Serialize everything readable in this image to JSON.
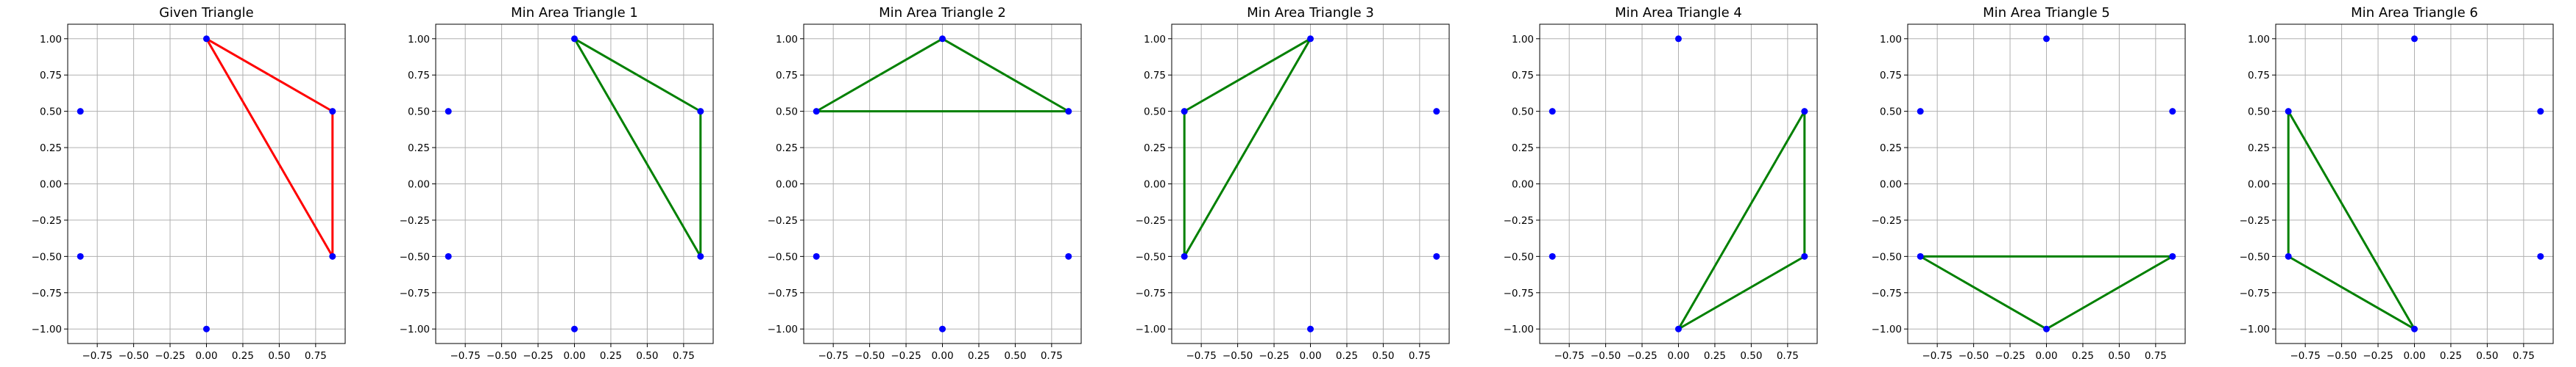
{
  "chart_data": [
    {
      "type": "scatter",
      "title": "Given Triangle",
      "points": {
        "x": [
          0,
          0.866,
          0.866,
          0,
          -0.866,
          -0.866
        ],
        "y": [
          1,
          0.5,
          -0.5,
          -1,
          -0.5,
          0.5
        ]
      },
      "triangle": [
        [
          0,
          1
        ],
        [
          0.866,
          0.5
        ],
        [
          0.866,
          -0.5
        ]
      ],
      "triangle_color": "#ff0000",
      "point_color": "#0000ff",
      "xticks": [
        -0.75,
        -0.5,
        -0.25,
        0,
        0.25,
        0.5,
        0.75
      ],
      "xtick_labels": [
        "−0.75",
        "−0.50",
        "−0.25",
        "0.00",
        "0.25",
        "0.50",
        "0.75"
      ],
      "yticks": [
        1,
        0.75,
        0.5,
        0.25,
        0,
        -0.25,
        -0.5,
        -0.75,
        -1
      ],
      "ytick_labels": [
        "1.00",
        "0.75",
        "0.50",
        "0.25",
        "0.00",
        "−0.25",
        "−0.50",
        "−0.75",
        "−1.00"
      ],
      "xlim": [
        -0.953,
        0.953
      ],
      "ylim": [
        -1.1,
        1.1
      ],
      "grid": true
    },
    {
      "type": "scatter",
      "title": "Min Area Triangle 1",
      "points": {
        "x": [
          0,
          0.866,
          0.866,
          0,
          -0.866,
          -0.866
        ],
        "y": [
          1,
          0.5,
          -0.5,
          -1,
          -0.5,
          0.5
        ]
      },
      "triangle": [
        [
          0,
          1
        ],
        [
          0.866,
          0.5
        ],
        [
          0.866,
          -0.5
        ]
      ],
      "triangle_color": "#008000",
      "point_color": "#0000ff",
      "xticks": [
        -0.75,
        -0.5,
        -0.25,
        0,
        0.25,
        0.5,
        0.75
      ],
      "xtick_labels": [
        "−0.75",
        "−0.50",
        "−0.25",
        "0.00",
        "0.25",
        "0.50",
        "0.75"
      ],
      "yticks": [
        1,
        0.75,
        0.5,
        0.25,
        0,
        -0.25,
        -0.5,
        -0.75,
        -1
      ],
      "ytick_labels": [
        "1.00",
        "0.75",
        "0.50",
        "0.25",
        "0.00",
        "−0.25",
        "−0.50",
        "−0.75",
        "−1.00"
      ],
      "xlim": [
        -0.953,
        0.953
      ],
      "ylim": [
        -1.1,
        1.1
      ],
      "grid": true
    },
    {
      "type": "scatter",
      "title": "Min Area Triangle 2",
      "points": {
        "x": [
          0,
          0.866,
          0.866,
          0,
          -0.866,
          -0.866
        ],
        "y": [
          1,
          0.5,
          -0.5,
          -1,
          -0.5,
          0.5
        ]
      },
      "triangle": [
        [
          0,
          1
        ],
        [
          0.866,
          0.5
        ],
        [
          -0.866,
          0.5
        ]
      ],
      "triangle_color": "#008000",
      "point_color": "#0000ff",
      "xticks": [
        -0.75,
        -0.5,
        -0.25,
        0,
        0.25,
        0.5,
        0.75
      ],
      "xtick_labels": [
        "−0.75",
        "−0.50",
        "−0.25",
        "0.00",
        "0.25",
        "0.50",
        "0.75"
      ],
      "yticks": [
        1,
        0.75,
        0.5,
        0.25,
        0,
        -0.25,
        -0.5,
        -0.75,
        -1
      ],
      "ytick_labels": [
        "1.00",
        "0.75",
        "0.50",
        "0.25",
        "0.00",
        "−0.25",
        "−0.50",
        "−0.75",
        "−1.00"
      ],
      "xlim": [
        -0.953,
        0.953
      ],
      "ylim": [
        -1.1,
        1.1
      ],
      "grid": true
    },
    {
      "type": "scatter",
      "title": "Min Area Triangle 3",
      "points": {
        "x": [
          0,
          0.866,
          0.866,
          0,
          -0.866,
          -0.866
        ],
        "y": [
          1,
          0.5,
          -0.5,
          -1,
          -0.5,
          0.5
        ]
      },
      "triangle": [
        [
          0,
          1
        ],
        [
          -0.866,
          -0.5
        ],
        [
          -0.866,
          0.5
        ]
      ],
      "triangle_color": "#008000",
      "point_color": "#0000ff",
      "xticks": [
        -0.75,
        -0.5,
        -0.25,
        0,
        0.25,
        0.5,
        0.75
      ],
      "xtick_labels": [
        "−0.75",
        "−0.50",
        "−0.25",
        "0.00",
        "0.25",
        "0.50",
        "0.75"
      ],
      "yticks": [
        1,
        0.75,
        0.5,
        0.25,
        0,
        -0.25,
        -0.5,
        -0.75,
        -1
      ],
      "ytick_labels": [
        "1.00",
        "0.75",
        "0.50",
        "0.25",
        "0.00",
        "−0.25",
        "−0.50",
        "−0.75",
        "−1.00"
      ],
      "xlim": [
        -0.953,
        0.953
      ],
      "ylim": [
        -1.1,
        1.1
      ],
      "grid": true
    },
    {
      "type": "scatter",
      "title": "Min Area Triangle 4",
      "points": {
        "x": [
          0,
          0.866,
          0.866,
          0,
          -0.866,
          -0.866
        ],
        "y": [
          1,
          0.5,
          -0.5,
          -1,
          -0.5,
          0.5
        ]
      },
      "triangle": [
        [
          0.866,
          0.5
        ],
        [
          0.866,
          -0.5
        ],
        [
          0,
          -1
        ]
      ],
      "triangle_color": "#008000",
      "point_color": "#0000ff",
      "xticks": [
        -0.75,
        -0.5,
        -0.25,
        0,
        0.25,
        0.5,
        0.75
      ],
      "xtick_labels": [
        "−0.75",
        "−0.50",
        "−0.25",
        "0.00",
        "0.25",
        "0.50",
        "0.75"
      ],
      "yticks": [
        1,
        0.75,
        0.5,
        0.25,
        0,
        -0.25,
        -0.5,
        -0.75,
        -1
      ],
      "ytick_labels": [
        "1.00",
        "0.75",
        "0.50",
        "0.25",
        "0.00",
        "−0.25",
        "−0.50",
        "−0.75",
        "−1.00"
      ],
      "xlim": [
        -0.953,
        0.953
      ],
      "ylim": [
        -1.1,
        1.1
      ],
      "grid": true
    },
    {
      "type": "scatter",
      "title": "Min Area Triangle 5",
      "points": {
        "x": [
          0,
          0.866,
          0.866,
          0,
          -0.866,
          -0.866
        ],
        "y": [
          1,
          0.5,
          -0.5,
          -1,
          -0.5,
          0.5
        ]
      },
      "triangle": [
        [
          0.866,
          -0.5
        ],
        [
          0,
          -1
        ],
        [
          -0.866,
          -0.5
        ]
      ],
      "triangle_color": "#008000",
      "point_color": "#0000ff",
      "xticks": [
        -0.75,
        -0.5,
        -0.25,
        0,
        0.25,
        0.5,
        0.75
      ],
      "xtick_labels": [
        "−0.75",
        "−0.50",
        "−0.25",
        "0.00",
        "0.25",
        "0.50",
        "0.75"
      ],
      "yticks": [
        1,
        0.75,
        0.5,
        0.25,
        0,
        -0.25,
        -0.5,
        -0.75,
        -1
      ],
      "ytick_labels": [
        "1.00",
        "0.75",
        "0.50",
        "0.25",
        "0.00",
        "−0.25",
        "−0.50",
        "−0.75",
        "−1.00"
      ],
      "xlim": [
        -0.953,
        0.953
      ],
      "ylim": [
        -1.1,
        1.1
      ],
      "grid": true
    },
    {
      "type": "scatter",
      "title": "Min Area Triangle 6",
      "points": {
        "x": [
          0,
          0.866,
          0.866,
          0,
          -0.866,
          -0.866
        ],
        "y": [
          1,
          0.5,
          -0.5,
          -1,
          -0.5,
          0.5
        ]
      },
      "triangle": [
        [
          0,
          -1
        ],
        [
          -0.866,
          -0.5
        ],
        [
          -0.866,
          0.5
        ]
      ],
      "triangle_color": "#008000",
      "point_color": "#0000ff",
      "xticks": [
        -0.75,
        -0.5,
        -0.25,
        0,
        0.25,
        0.5,
        0.75
      ],
      "xtick_labels": [
        "−0.75",
        "−0.50",
        "−0.25",
        "0.00",
        "0.25",
        "0.50",
        "0.75"
      ],
      "yticks": [
        1,
        0.75,
        0.5,
        0.25,
        0,
        -0.25,
        -0.5,
        -0.75,
        -1
      ],
      "ytick_labels": [
        "1.00",
        "0.75",
        "0.50",
        "0.25",
        "0.00",
        "−0.25",
        "−0.50",
        "−0.75",
        "−1.00"
      ],
      "xlim": [
        -0.953,
        0.953
      ],
      "ylim": [
        -1.1,
        1.1
      ],
      "grid": true
    }
  ]
}
